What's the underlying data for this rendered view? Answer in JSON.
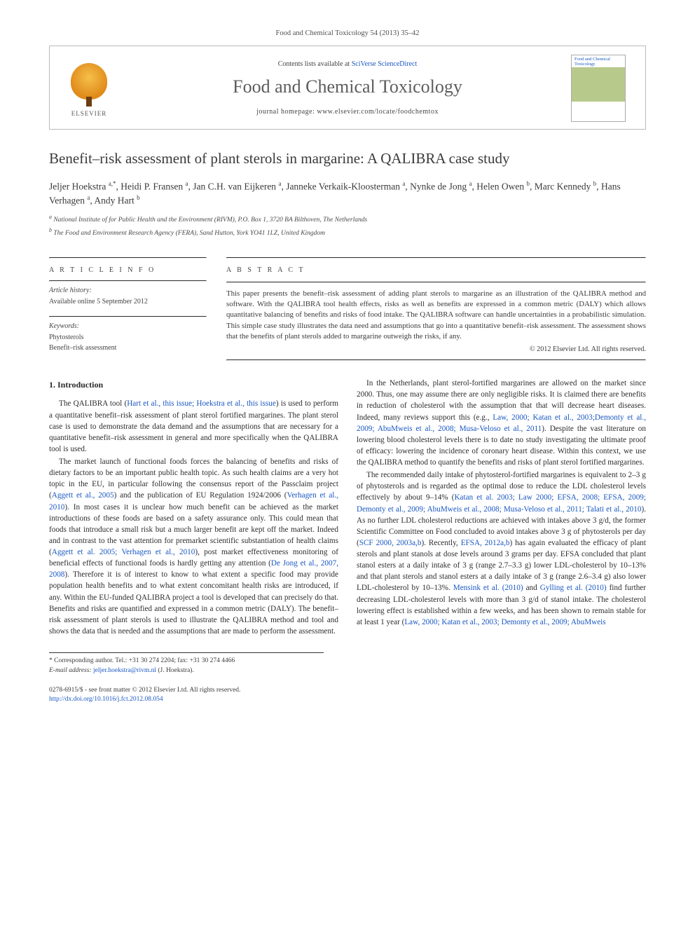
{
  "citation": "Food and Chemical Toxicology 54 (2013) 35–42",
  "header": {
    "contents_prefix": "Contents lists available at ",
    "contents_link": "SciVerse ScienceDirect",
    "journal": "Food and Chemical Toxicology",
    "homepage_prefix": "journal homepage: ",
    "homepage": "www.elsevier.com/locate/foodchemtox",
    "publisher_name": "ELSEVIER",
    "cover_label": "Food and Chemical Toxicology"
  },
  "title": "Benefit–risk assessment of plant sterols in margarine: A QALIBRA case study",
  "authors_html": "Jeljer Hoekstra <sup>a,*</sup>, Heidi P. Fransen <sup>a</sup>, Jan C.H. van Eijkeren <sup>a</sup>, Janneke Verkaik-Kloosterman <sup>a</sup>, Nynke de Jong <sup>a</sup>, Helen Owen <sup>b</sup>, Marc Kennedy <sup>b</sup>, Hans Verhagen <sup>a</sup>, Andy Hart <sup>b</sup>",
  "affiliations": [
    "a National Institute of for Public Health and the Environment (RIVM), P.O. Box 1, 3720 BA Bilthoven, The Netherlands",
    "b The Food and Environment Research Agency (FERA), Sand Hutton, York YO41 1LZ, United Kingdom"
  ],
  "info": {
    "heading": "A R T I C L E   I N F O",
    "history_label": "Article history:",
    "history_text": "Available online 5 September 2012",
    "keywords_label": "Keywords:",
    "keywords": [
      "Phytosterols",
      "Benefit–risk assessment"
    ]
  },
  "abstract": {
    "heading": "A B S T R A C T",
    "text": "This paper presents the benefit–risk assessment of adding plant sterols to margarine as an illustration of the QALIBRA method and software. With the QALIBRA tool health effects, risks as well as benefits are expressed in a common metric (DALY) which allows quantitative balancing of benefits and risks of food intake. The QALIBRA software can handle uncertainties in a probabilistic simulation. This simple case study illustrates the data need and assumptions that go into a quantitative benefit–risk assessment. The assessment shows that the benefits of plant sterols added to margarine outweigh the risks, if any.",
    "copyright": "© 2012 Elsevier Ltd. All rights reserved."
  },
  "body": {
    "section_title": "1. Introduction",
    "p1a": "The QALIBRA tool (",
    "p1_link1": "Hart et al., this issue; Hoekstra et al., this issue",
    "p1b": ") is used to perform a quantitative benefit–risk assessment of plant sterol fortified margarines. The plant sterol case is used to demonstrate the data demand and the assumptions that are necessary for a quantitative benefit–risk assessment in general and more specifically when the QALIBRA tool is used.",
    "p2a": "The market launch of functional foods forces the balancing of benefits and risks of dietary factors to be an important public health topic. As such health claims are a very hot topic in the EU, in particular following the consensus report of the Passclaim project (",
    "p2_l1": "Aggett et al., 2005",
    "p2b": ") and the publication of EU Regulation 1924/2006 (",
    "p2_l2": "Verhagen et al., 2010",
    "p2c": "). In most cases it is unclear how much benefit can be achieved as the market introductions of these foods are based on a safety assurance only. This could mean that foods that introduce a small risk but a much larger benefit are kept off the market. Indeed and in contrast to the vast attention for premarket scientific substantiation of health claims (",
    "p2_l3": "Aggett et al. 2005; Verhagen et al., 2010",
    "p2d": "), post market effectiveness monitoring of beneficial effects of functional foods is hardly getting any attention (",
    "p2_l4": "De Jong et al., 2007, 2008",
    "p2e": "). Therefore it is of interest to know to what extent a specific food may provide population health benefits and to what extent concomitant health risks are introduced, if any. Within the EU-funded QALIBRA project a tool is developed that can precisely do that. Benefits and risks are quantified and expressed in a common metric (DALY). The benefit–risk assessment of plant sterols is used to illustrate the QALIBRA method and tool and shows the data that is needed and the assumptions that are made to perform the assessment.",
    "p3a": "In the Netherlands, plant sterol-fortified margarines are allowed on the market since 2000. Thus, one may assume there are only negligible risks. It is claimed there are benefits in reduction of cholesterol with the assumption that that will decrease heart diseases. Indeed, many reviews support this (e.g., ",
    "p3_l1": "Law, 2000; Katan et al., 2003;Demonty et al., 2009; AbuMweis et al., 2008; Musa-Veloso et al., 2011",
    "p3b": "). Despite the vast literature on lowering blood cholesterol levels there is to date no study investigating the ultimate proof of efficacy: lowering the incidence of coronary heart disease. Within this context, we use the QALIBRA method to quantify the benefits and risks of plant sterol fortified margarines.",
    "p4a": "The recommended daily intake of phytosterol-fortified margarines is equivalent to 2–3 g of phytosterols and is regarded as the optimal dose to reduce the LDL cholesterol levels effectively by about 9–14% (",
    "p4_l1": "Katan et al. 2003; Law 2000; EFSA, 2008; EFSA, 2009; Demonty et al., 2009; AbuMweis et al., 2008; Musa-Veloso et al., 2011; Talati et al., 2010",
    "p4b": "). As no further LDL cholesterol reductions are achieved with intakes above 3 g/d, the former Scientific Committee on Food concluded to avoid intakes above 3 g of phytosterols per day (",
    "p4_l2": "SCF 2000, 2003a,b",
    "p4c": "). Recently, ",
    "p4_l3": "EFSA, 2012a,b",
    "p4d": ") has again evaluated the efficacy of plant sterols and plant stanols at dose levels around 3 grams per day. EFSA concluded that plant stanol esters at a daily intake of 3 g (range 2.7–3.3 g) lower LDL-cholesterol by 10–13% and that plant sterols and stanol esters at a daily intake of 3 g (range 2.6–3.4 g) also lower LDL-cholesterol by 10–13%. ",
    "p4_l4": "Mensink et al. (2010)",
    "p4e": " and ",
    "p4_l5": "Gylling et al. (2010)",
    "p4f": " find further decreasing LDL-cholesterol levels with more than 3 g/d of stanol intake. The cholesterol lowering effect is established within a few weeks, and has been shown to remain stable for at least 1 year (",
    "p4_l6": "Law, 2000; Katan et al., 2003; Demonty et al., 2009; AbuMweis"
  },
  "footnote": {
    "corr": "* Corresponding author. Tel.: +31 30 274 2204; fax: +31 30 274 4466",
    "email_label": "E-mail address: ",
    "email": "jeljer.hoekstra@rivm.nl",
    "email_after": " (J. Hoekstra)."
  },
  "bottom": {
    "left1": "0278-6915/$ - see front matter © 2012 Elsevier Ltd. All rights reserved.",
    "doi": "http://dx.doi.org/10.1016/j.fct.2012.08.054"
  },
  "colors": {
    "link": "#1957c2",
    "text": "#3a3a3a",
    "rule": "#333333"
  }
}
